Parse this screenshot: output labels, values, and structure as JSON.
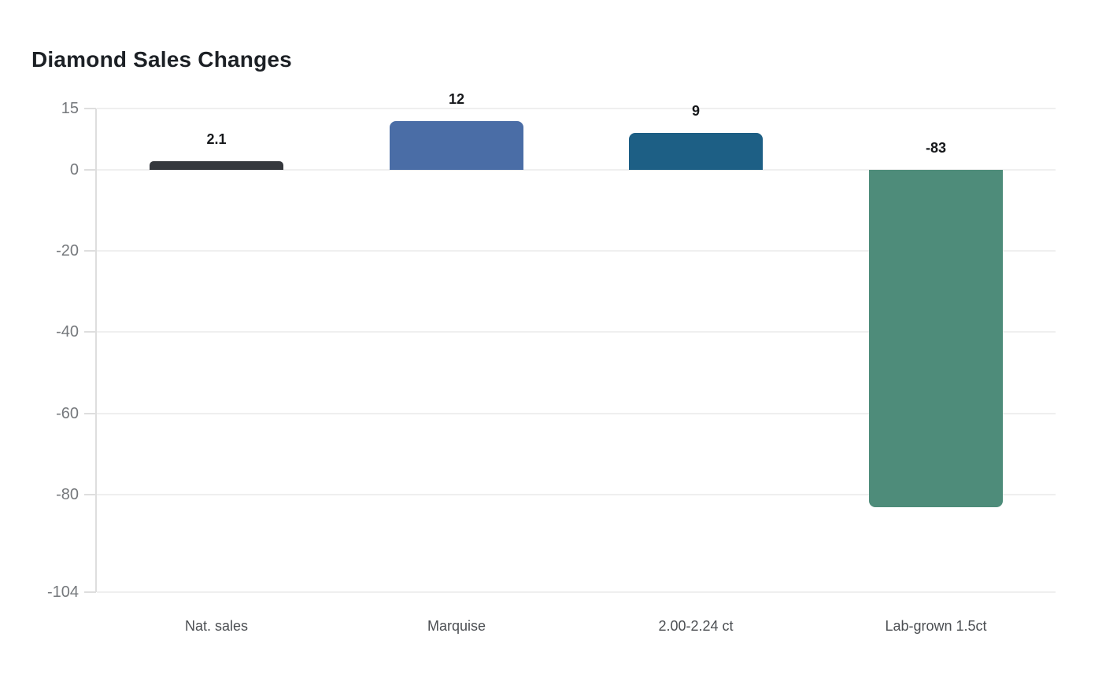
{
  "chart_data": {
    "type": "bar",
    "title": "Diamond Sales Changes",
    "categories": [
      "Nat. sales",
      "Marquise",
      "2.00-2.24 ct",
      "Lab-grown 1.5ct"
    ],
    "values": [
      2.1,
      12,
      9,
      -83
    ],
    "value_labels": [
      "2.1",
      "12",
      "9",
      "-83"
    ],
    "bar_colors": [
      "#35383d",
      "#4a6da6",
      "#1d5f85",
      "#4e8c7a"
    ],
    "bar_patterns": [
      "dots",
      "solid",
      "solid",
      "solid"
    ],
    "xlabel": "",
    "ylabel": "",
    "ylim": [
      -104,
      15
    ],
    "yticks": [
      15,
      0,
      -20,
      -40,
      -60,
      -80,
      -104
    ],
    "grid": true,
    "legend": "none",
    "colors": {
      "grid": "#efefef",
      "axis_line": "#dedede",
      "tick_label": "#75787c",
      "category_label": "#4b4e52",
      "value_label": "#16181b",
      "title": "#1c2025",
      "background": "#ffffff"
    }
  }
}
